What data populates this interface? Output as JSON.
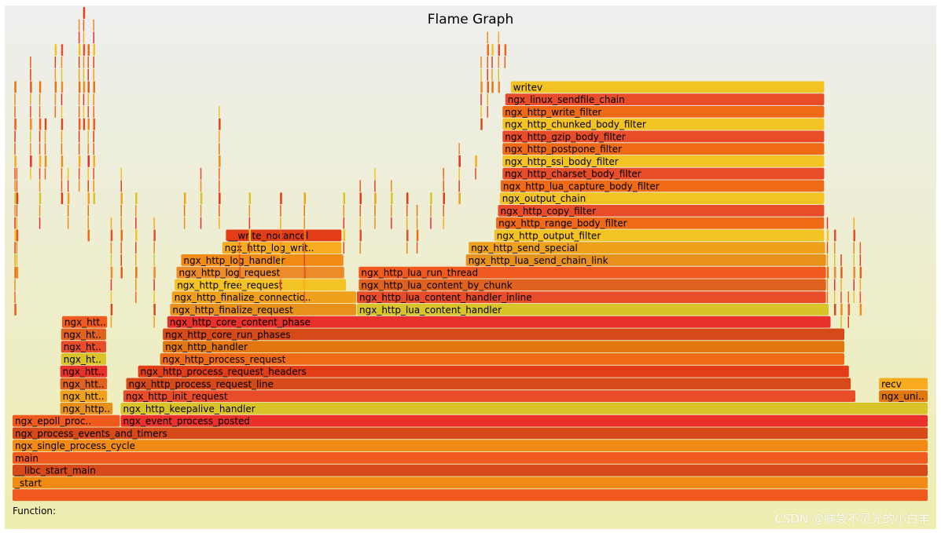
{
  "title": "Flame Graph",
  "function_label": "Function:",
  "function_value": "",
  "watermark": "CSDN @脑袋不灵光的小白羊",
  "chart_data": {
    "type": "flamegraph",
    "title": "Flame Graph",
    "xlim": [
      0,
      1000
    ],
    "frame_rows": 39,
    "frames": [
      {
        "name": "",
        "depth": 0,
        "start": 0,
        "width": 1000
      },
      {
        "name": "_start",
        "depth": 1,
        "start": 0,
        "width": 1000
      },
      {
        "name": "__libc_start_main",
        "depth": 2,
        "start": 0,
        "width": 1000
      },
      {
        "name": "main",
        "depth": 3,
        "start": 0,
        "width": 1000
      },
      {
        "name": "ngx_single_process_cycle",
        "depth": 4,
        "start": 0,
        "width": 1000
      },
      {
        "name": "ngx_process_events_and_timers",
        "depth": 5,
        "start": 0,
        "width": 1000
      },
      {
        "name": "ngx_epoll_proc..",
        "depth": 6,
        "start": 0,
        "width": 118
      },
      {
        "name": "ngx_event_process_posted",
        "depth": 6,
        "start": 118,
        "width": 882
      },
      {
        "name": "ngx_http..",
        "depth": 7,
        "start": 52,
        "width": 58
      },
      {
        "name": "ngx_http_keepalive_handler",
        "depth": 7,
        "start": 118,
        "width": 882
      },
      {
        "name": "ngx_htt..",
        "depth": 8,
        "start": 52,
        "width": 52
      },
      {
        "name": "ngx_http_init_request",
        "depth": 8,
        "start": 121,
        "width": 800
      },
      {
        "name": "ngx_uni..",
        "depth": 8,
        "start": 946,
        "width": 54
      },
      {
        "name": "ngx_htt..",
        "depth": 9,
        "start": 52,
        "width": 52
      },
      {
        "name": "ngx_http_process_request_line",
        "depth": 9,
        "start": 124,
        "width": 792
      },
      {
        "name": "recv",
        "depth": 9,
        "start": 946,
        "width": 54
      },
      {
        "name": "ngx_htt..",
        "depth": 10,
        "start": 52,
        "width": 52
      },
      {
        "name": "ngx_http_process_request_headers",
        "depth": 10,
        "start": 137,
        "width": 777
      },
      {
        "name": "ngx_ht..",
        "depth": 11,
        "start": 53,
        "width": 50
      },
      {
        "name": "ngx_http_process_request",
        "depth": 11,
        "start": 161,
        "width": 748
      },
      {
        "name": "ngx_ht..",
        "depth": 12,
        "start": 53,
        "width": 50
      },
      {
        "name": "ngx_http_handler",
        "depth": 12,
        "start": 164,
        "width": 745
      },
      {
        "name": "ngx_ht..",
        "depth": 13,
        "start": 53,
        "width": 50
      },
      {
        "name": "ngx_http_core_run_phases",
        "depth": 13,
        "start": 164,
        "width": 745
      },
      {
        "name": "ngx_htt..",
        "depth": 14,
        "start": 54,
        "width": 50
      },
      {
        "name": "ngx_http_core_content_phase",
        "depth": 14,
        "start": 169,
        "width": 725
      },
      {
        "name": "ngx_http_finalize_request",
        "depth": 15,
        "start": 172,
        "width": 204
      },
      {
        "name": "ngx_http_lua_content_handler",
        "depth": 15,
        "start": 376,
        "width": 516
      },
      {
        "name": "ngx_http_finalize_connectio..",
        "depth": 16,
        "start": 174,
        "width": 202
      },
      {
        "name": "ngx_http_lua_content_handler_inline",
        "depth": 16,
        "start": 376,
        "width": 513
      },
      {
        "name": "ngx_http_free_request",
        "depth": 17,
        "start": 177,
        "width": 188
      },
      {
        "name": "ngx_http_lua_content_by_chunk",
        "depth": 17,
        "start": 378,
        "width": 511
      },
      {
        "name": "ngx_http_log_request",
        "depth": 18,
        "start": 179,
        "width": 184
      },
      {
        "name": "ngx_http_lua_run_thread",
        "depth": 18,
        "start": 378,
        "width": 511
      },
      {
        "name": "ngx_http_log_handler",
        "depth": 19,
        "start": 184,
        "width": 178
      },
      {
        "name": "ngx_http_lua_send_chain_link",
        "depth": 19,
        "start": 495,
        "width": 394
      },
      {
        "name": "ngx_http_log_writ..",
        "depth": 20,
        "start": 229,
        "width": 131
      },
      {
        "name": "ngx_http_send_special",
        "depth": 20,
        "start": 498,
        "width": 390
      },
      {
        "name": "__write_nocancel",
        "depth": 21,
        "start": 233,
        "width": 127
      },
      {
        "name": "ngx_http_output_filter",
        "depth": 21,
        "start": 526,
        "width": 361
      },
      {
        "name": "ngx_http_range_body_filter",
        "depth": 22,
        "start": 528,
        "width": 359
      },
      {
        "name": "ngx_http_copy_filter",
        "depth": 23,
        "start": 530,
        "width": 357
      },
      {
        "name": "ngx_output_chain",
        "depth": 24,
        "start": 532,
        "width": 355
      },
      {
        "name": "ngx_http_lua_capture_body_filter",
        "depth": 25,
        "start": 533,
        "width": 354
      },
      {
        "name": "ngx_http_charset_body_filter",
        "depth": 26,
        "start": 535,
        "width": 352
      },
      {
        "name": "ngx_http_ssi_body_filter",
        "depth": 27,
        "start": 535,
        "width": 352
      },
      {
        "name": "ngx_http_postpone_filter",
        "depth": 28,
        "start": 535,
        "width": 352
      },
      {
        "name": "ngx_http_gzip_body_filter",
        "depth": 29,
        "start": 535,
        "width": 352
      },
      {
        "name": "ngx_http_chunked_body_filter",
        "depth": 30,
        "start": 535,
        "width": 352
      },
      {
        "name": "ngx_http_write_filter",
        "depth": 31,
        "start": 535,
        "width": 352
      },
      {
        "name": "ngx_linux_sendfile_chain",
        "depth": 32,
        "start": 538,
        "width": 349
      },
      {
        "name": "writev",
        "depth": 33,
        "start": 544,
        "width": 343
      }
    ]
  }
}
